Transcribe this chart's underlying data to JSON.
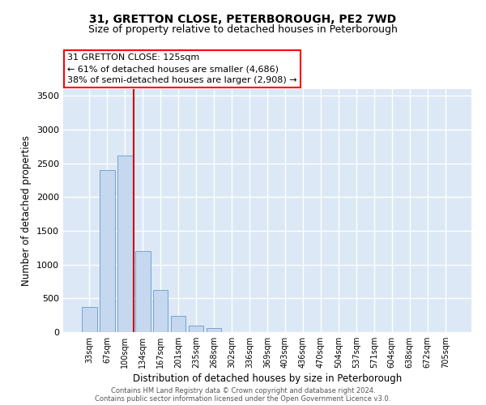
{
  "title": "31, GRETTON CLOSE, PETERBOROUGH, PE2 7WD",
  "subtitle": "Size of property relative to detached houses in Peterborough",
  "xlabel": "Distribution of detached houses by size in Peterborough",
  "ylabel": "Number of detached properties",
  "categories": [
    "33sqm",
    "67sqm",
    "100sqm",
    "134sqm",
    "167sqm",
    "201sqm",
    "235sqm",
    "268sqm",
    "302sqm",
    "336sqm",
    "369sqm",
    "403sqm",
    "436sqm",
    "470sqm",
    "504sqm",
    "537sqm",
    "571sqm",
    "604sqm",
    "638sqm",
    "672sqm",
    "705sqm"
  ],
  "bar_values": [
    370,
    2400,
    2620,
    1200,
    620,
    240,
    100,
    60,
    0,
    0,
    0,
    0,
    0,
    0,
    0,
    0,
    0,
    0,
    0,
    0,
    0
  ],
  "bar_color": "#c5d8ef",
  "bar_edgecolor": "#6699cc",
  "vline_x": 2.5,
  "vline_color": "#cc0000",
  "annotation_box_text": "31 GRETTON CLOSE: 125sqm\n← 61% of detached houses are smaller (4,686)\n38% of semi-detached houses are larger (2,908) →",
  "ylim": [
    0,
    3600
  ],
  "yticks": [
    0,
    500,
    1000,
    1500,
    2000,
    2500,
    3000,
    3500
  ],
  "background_color": "#dce8f5",
  "plot_bg_color": "#dce8f5",
  "footer_line1": "Contains HM Land Registry data © Crown copyright and database right 2024.",
  "footer_line2": "Contains public sector information licensed under the Open Government Licence v3.0.",
  "title_fontsize": 10,
  "subtitle_fontsize": 9,
  "xlabel_fontsize": 8.5,
  "ylabel_fontsize": 8.5,
  "tick_fontsize": 8,
  "annot_fontsize": 8
}
